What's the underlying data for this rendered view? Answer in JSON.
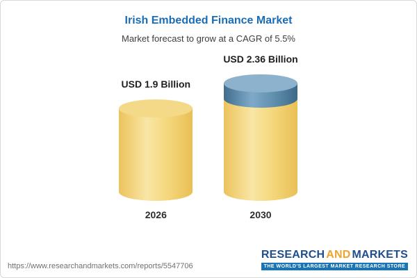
{
  "chart_data": {
    "type": "bar",
    "title": "Irish Embedded Finance Market",
    "subtitle": "Market forecast to grow at a CAGR of 5.5%",
    "categories": [
      "2026",
      "2030"
    ],
    "values": [
      1.9,
      2.36
    ],
    "value_labels": [
      "USD 1.9 Billion",
      "USD 2.36 Billion"
    ],
    "unit": "USD Billion",
    "ylim": [
      0,
      2.5
    ],
    "grid": false,
    "legend": "none",
    "colors": {
      "bar": "#F5D87E",
      "growth_cap": "#4E7FA6",
      "title_text": "#1A6CB5"
    }
  },
  "footer": {
    "url": "https://www.researchandmarkets.com/reports/5547706",
    "logo": {
      "research": "RESEARCH",
      "and": "AND",
      "markets": "MARKETS",
      "tagline": "THE WORLD'S LARGEST MARKET RESEARCH STORE"
    }
  }
}
